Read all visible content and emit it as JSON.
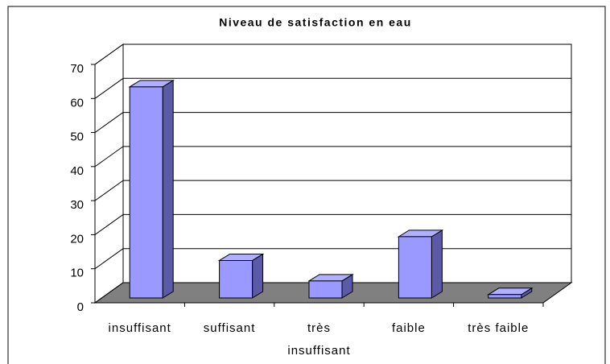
{
  "chart_data": {
    "type": "bar3d",
    "title": "Niveau de satisfaction en eau",
    "categories": [
      "insuffisant",
      "suffisant",
      "très insuffisant",
      "faible",
      "très faible"
    ],
    "values": [
      62,
      11,
      5,
      18,
      1
    ],
    "color": "#9999ff",
    "ylim": [
      0,
      70
    ],
    "yticks": [
      0,
      10,
      20,
      30,
      40,
      50,
      60,
      70
    ],
    "grid": true
  }
}
